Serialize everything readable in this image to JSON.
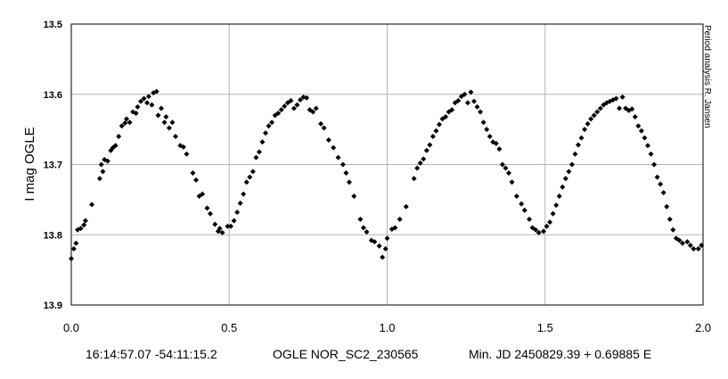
{
  "chart_data": {
    "type": "scatter",
    "title": "",
    "xlabel": "",
    "ylabel": "I mag OGLE",
    "xlim": [
      0.0,
      2.0
    ],
    "ylim": [
      13.5,
      13.9
    ],
    "y_inverted": true,
    "grid": true,
    "legend": "none",
    "marker": "diamond",
    "marker_color": "#000000",
    "x_ticks": [
      "0.0",
      "0.5",
      "1.0",
      "1.5",
      "2.0"
    ],
    "x_tick_values": [
      0.0,
      0.5,
      1.0,
      1.5,
      2.0
    ],
    "y_ticks": [
      "13.5",
      "13.6",
      "13.7",
      "13.8",
      "13.9"
    ],
    "y_tick_values": [
      13.5,
      13.6,
      13.7,
      13.8,
      13.9
    ],
    "side_note": "Period analysis  R. Jansen",
    "footer": {
      "coords": "16:14:57.07 -54:11:15.2",
      "star_id": "OGLE NOR_SC2_230565",
      "ephemeris": "Min. JD 2450829.39 + 0.69885 E"
    },
    "points": [
      [
        0.0,
        13.834
      ],
      [
        0.008,
        13.82
      ],
      [
        0.015,
        13.812
      ],
      [
        0.02,
        13.793
      ],
      [
        0.03,
        13.791
      ],
      [
        0.04,
        13.786
      ],
      [
        0.045,
        13.78
      ],
      [
        0.065,
        13.757
      ],
      [
        0.09,
        13.72
      ],
      [
        0.095,
        13.7
      ],
      [
        0.1,
        13.71
      ],
      [
        0.105,
        13.693
      ],
      [
        0.115,
        13.695
      ],
      [
        0.125,
        13.68
      ],
      [
        0.132,
        13.676
      ],
      [
        0.14,
        13.673
      ],
      [
        0.15,
        13.66
      ],
      [
        0.16,
        13.645
      ],
      [
        0.17,
        13.641
      ],
      [
        0.175,
        13.635
      ],
      [
        0.185,
        13.64
      ],
      [
        0.195,
        13.625
      ],
      [
        0.205,
        13.627
      ],
      [
        0.21,
        13.618
      ],
      [
        0.22,
        13.61
      ],
      [
        0.23,
        13.606
      ],
      [
        0.24,
        13.612
      ],
      [
        0.245,
        13.603
      ],
      [
        0.255,
        13.615
      ],
      [
        0.26,
        13.598
      ],
      [
        0.27,
        13.596
      ],
      [
        0.275,
        13.63
      ],
      [
        0.285,
        13.62
      ],
      [
        0.295,
        13.64
      ],
      [
        0.3,
        13.632
      ],
      [
        0.31,
        13.648
      ],
      [
        0.32,
        13.64
      ],
      [
        0.33,
        13.66
      ],
      [
        0.345,
        13.673
      ],
      [
        0.355,
        13.675
      ],
      [
        0.365,
        13.685
      ],
      [
        0.385,
        13.712
      ],
      [
        0.395,
        13.722
      ],
      [
        0.405,
        13.745
      ],
      [
        0.415,
        13.742
      ],
      [
        0.43,
        13.762
      ],
      [
        0.44,
        13.77
      ],
      [
        0.455,
        13.785
      ],
      [
        0.465,
        13.795
      ],
      [
        0.47,
        13.791
      ],
      [
        0.478,
        13.797
      ],
      [
        0.495,
        13.788
      ],
      [
        0.505,
        13.788
      ],
      [
        0.515,
        13.78
      ],
      [
        0.525,
        13.768
      ],
      [
        0.535,
        13.755
      ],
      [
        0.545,
        13.742
      ],
      [
        0.555,
        13.725
      ],
      [
        0.565,
        13.718
      ],
      [
        0.575,
        13.71
      ],
      [
        0.585,
        13.69
      ],
      [
        0.595,
        13.682
      ],
      [
        0.605,
        13.668
      ],
      [
        0.615,
        13.655
      ],
      [
        0.625,
        13.645
      ],
      [
        0.635,
        13.64
      ],
      [
        0.645,
        13.63
      ],
      [
        0.655,
        13.627
      ],
      [
        0.665,
        13.622
      ],
      [
        0.675,
        13.617
      ],
      [
        0.685,
        13.612
      ],
      [
        0.695,
        13.609
      ],
      [
        0.705,
        13.62
      ],
      [
        0.715,
        13.615
      ],
      [
        0.725,
        13.608
      ],
      [
        0.735,
        13.604
      ],
      [
        0.745,
        13.605
      ],
      [
        0.755,
        13.622
      ],
      [
        0.765,
        13.625
      ],
      [
        0.775,
        13.62
      ],
      [
        0.79,
        13.642
      ],
      [
        0.8,
        13.648
      ],
      [
        0.815,
        13.665
      ],
      [
        0.83,
        13.676
      ],
      [
        0.845,
        13.69
      ],
      [
        0.86,
        13.7
      ],
      [
        0.87,
        13.712
      ],
      [
        0.88,
        13.725
      ],
      [
        0.895,
        13.745
      ],
      [
        0.915,
        13.778
      ],
      [
        0.925,
        13.79
      ],
      [
        0.935,
        13.796
      ],
      [
        0.95,
        13.808
      ],
      [
        0.96,
        13.81
      ],
      [
        0.975,
        13.816
      ],
      [
        0.985,
        13.832
      ],
      [
        0.995,
        13.82
      ],
      [
        1.0,
        13.805
      ],
      [
        1.015,
        13.792
      ],
      [
        1.025,
        13.79
      ],
      [
        1.04,
        13.778
      ],
      [
        1.06,
        13.76
      ],
      [
        1.085,
        13.72
      ],
      [
        1.095,
        13.705
      ],
      [
        1.105,
        13.698
      ],
      [
        1.115,
        13.692
      ],
      [
        1.125,
        13.68
      ],
      [
        1.135,
        13.672
      ],
      [
        1.145,
        13.66
      ],
      [
        1.155,
        13.652
      ],
      [
        1.165,
        13.643
      ],
      [
        1.175,
        13.635
      ],
      [
        1.185,
        13.632
      ],
      [
        1.195,
        13.625
      ],
      [
        1.205,
        13.622
      ],
      [
        1.215,
        13.612
      ],
      [
        1.225,
        13.609
      ],
      [
        1.235,
        13.603
      ],
      [
        1.245,
        13.6
      ],
      [
        1.255,
        13.612
      ],
      [
        1.265,
        13.597
      ],
      [
        1.275,
        13.61
      ],
      [
        1.285,
        13.618
      ],
      [
        1.295,
        13.625
      ],
      [
        1.305,
        13.64
      ],
      [
        1.315,
        13.65
      ],
      [
        1.325,
        13.66
      ],
      [
        1.335,
        13.668
      ],
      [
        1.345,
        13.67
      ],
      [
        1.355,
        13.678
      ],
      [
        1.365,
        13.7
      ],
      [
        1.375,
        13.705
      ],
      [
        1.385,
        13.712
      ],
      [
        1.395,
        13.725
      ],
      [
        1.41,
        13.745
      ],
      [
        1.425,
        13.756
      ],
      [
        1.435,
        13.765
      ],
      [
        1.45,
        13.778
      ],
      [
        1.46,
        13.79
      ],
      [
        1.47,
        13.793
      ],
      [
        1.48,
        13.797
      ],
      [
        1.495,
        13.795
      ],
      [
        1.505,
        13.788
      ],
      [
        1.515,
        13.782
      ],
      [
        1.525,
        13.77
      ],
      [
        1.535,
        13.758
      ],
      [
        1.545,
        13.745
      ],
      [
        1.555,
        13.732
      ],
      [
        1.565,
        13.72
      ],
      [
        1.575,
        13.71
      ],
      [
        1.585,
        13.7
      ],
      [
        1.595,
        13.685
      ],
      [
        1.605,
        13.672
      ],
      [
        1.615,
        13.662
      ],
      [
        1.625,
        13.65
      ],
      [
        1.635,
        13.642
      ],
      [
        1.645,
        13.635
      ],
      [
        1.655,
        13.63
      ],
      [
        1.665,
        13.625
      ],
      [
        1.675,
        13.62
      ],
      [
        1.685,
        13.615
      ],
      [
        1.695,
        13.612
      ],
      [
        1.705,
        13.61
      ],
      [
        1.715,
        13.608
      ],
      [
        1.725,
        13.606
      ],
      [
        1.735,
        13.62
      ],
      [
        1.745,
        13.604
      ],
      [
        1.755,
        13.62
      ],
      [
        1.765,
        13.623
      ],
      [
        1.775,
        13.621
      ],
      [
        1.785,
        13.632
      ],
      [
        1.795,
        13.645
      ],
      [
        1.805,
        13.652
      ],
      [
        1.815,
        13.662
      ],
      [
        1.825,
        13.673
      ],
      [
        1.835,
        13.685
      ],
      [
        1.845,
        13.7
      ],
      [
        1.855,
        13.718
      ],
      [
        1.865,
        13.728
      ],
      [
        1.875,
        13.74
      ],
      [
        1.885,
        13.76
      ],
      [
        1.895,
        13.778
      ],
      [
        1.905,
        13.793
      ],
      [
        1.915,
        13.805
      ],
      [
        1.925,
        13.808
      ],
      [
        1.935,
        13.812
      ],
      [
        1.95,
        13.81
      ],
      [
        1.96,
        13.815
      ],
      [
        1.97,
        13.82
      ],
      [
        1.985,
        13.82
      ],
      [
        1.995,
        13.815
      ]
    ]
  }
}
